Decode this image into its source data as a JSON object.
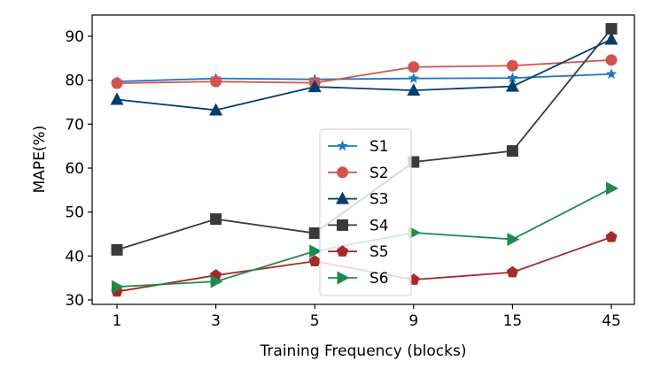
{
  "chart_data": {
    "type": "line",
    "title": "",
    "xlabel": "Training Frequency (blocks)",
    "ylabel": "MAPE(%)",
    "categories": [
      "1",
      "3",
      "5",
      "9",
      "15",
      "45"
    ],
    "ylim": [
      29,
      94
    ],
    "yticks": [
      30,
      40,
      50,
      60,
      70,
      80,
      90
    ],
    "grid": false,
    "legend_position": "center",
    "series": [
      {
        "name": "S1",
        "color": "#1f77c4",
        "marker": "star",
        "values": [
          79.7,
          80.4,
          80.2,
          80.4,
          80.5,
          81.4
        ]
      },
      {
        "name": "S2",
        "color": "#d1554e",
        "marker": "circle",
        "values": [
          79.3,
          79.7,
          79.4,
          83.0,
          83.3,
          84.6
        ]
      },
      {
        "name": "S3",
        "color": "#073d6e",
        "marker": "triangle-up",
        "values": [
          75.6,
          73.2,
          78.5,
          77.7,
          78.6,
          89.3
        ]
      },
      {
        "name": "S4",
        "color": "#3a3a3a",
        "marker": "square",
        "values": [
          41.4,
          48.4,
          45.2,
          61.4,
          63.9,
          91.7
        ]
      },
      {
        "name": "S5",
        "color": "#a52a2a",
        "marker": "pentagon",
        "values": [
          31.9,
          35.6,
          38.8,
          34.6,
          36.3,
          44.3
        ]
      },
      {
        "name": "S6",
        "color": "#1f8a4c",
        "marker": "triangle-right",
        "values": [
          33.0,
          34.2,
          41.1,
          45.3,
          43.8,
          55.4
        ]
      }
    ]
  }
}
